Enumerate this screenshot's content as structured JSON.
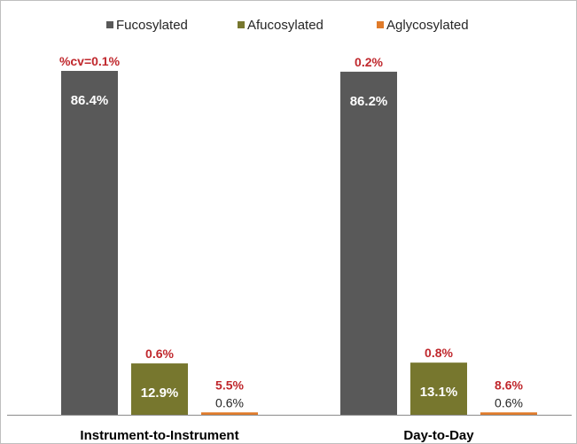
{
  "chart_data": {
    "type": "bar",
    "categories": [
      "Instrument-to-Instrument",
      "Day-to-Day"
    ],
    "series": [
      {
        "name": "Fucosylated",
        "color": "#595959",
        "values": [
          86.4,
          86.2
        ],
        "labels": [
          "86.4%",
          "86.2%"
        ],
        "cv": [
          "%cv=0.1%",
          "0.2%"
        ]
      },
      {
        "name": "Afucosylated",
        "color": "#77772e",
        "values": [
          12.9,
          13.1
        ],
        "labels": [
          "12.9%",
          "13.1%"
        ],
        "cv": [
          "0.6%",
          "0.8%"
        ]
      },
      {
        "name": "Aglycosylated",
        "color": "#e07b2a",
        "values": [
          0.6,
          0.6
        ],
        "labels": [
          "0.6%",
          "0.6%"
        ],
        "cv": [
          "5.5%",
          "8.6%"
        ]
      }
    ],
    "ylim": [
      0,
      86.4
    ],
    "grid": false,
    "legend_position": "top",
    "cv_color": "#c0282d"
  }
}
